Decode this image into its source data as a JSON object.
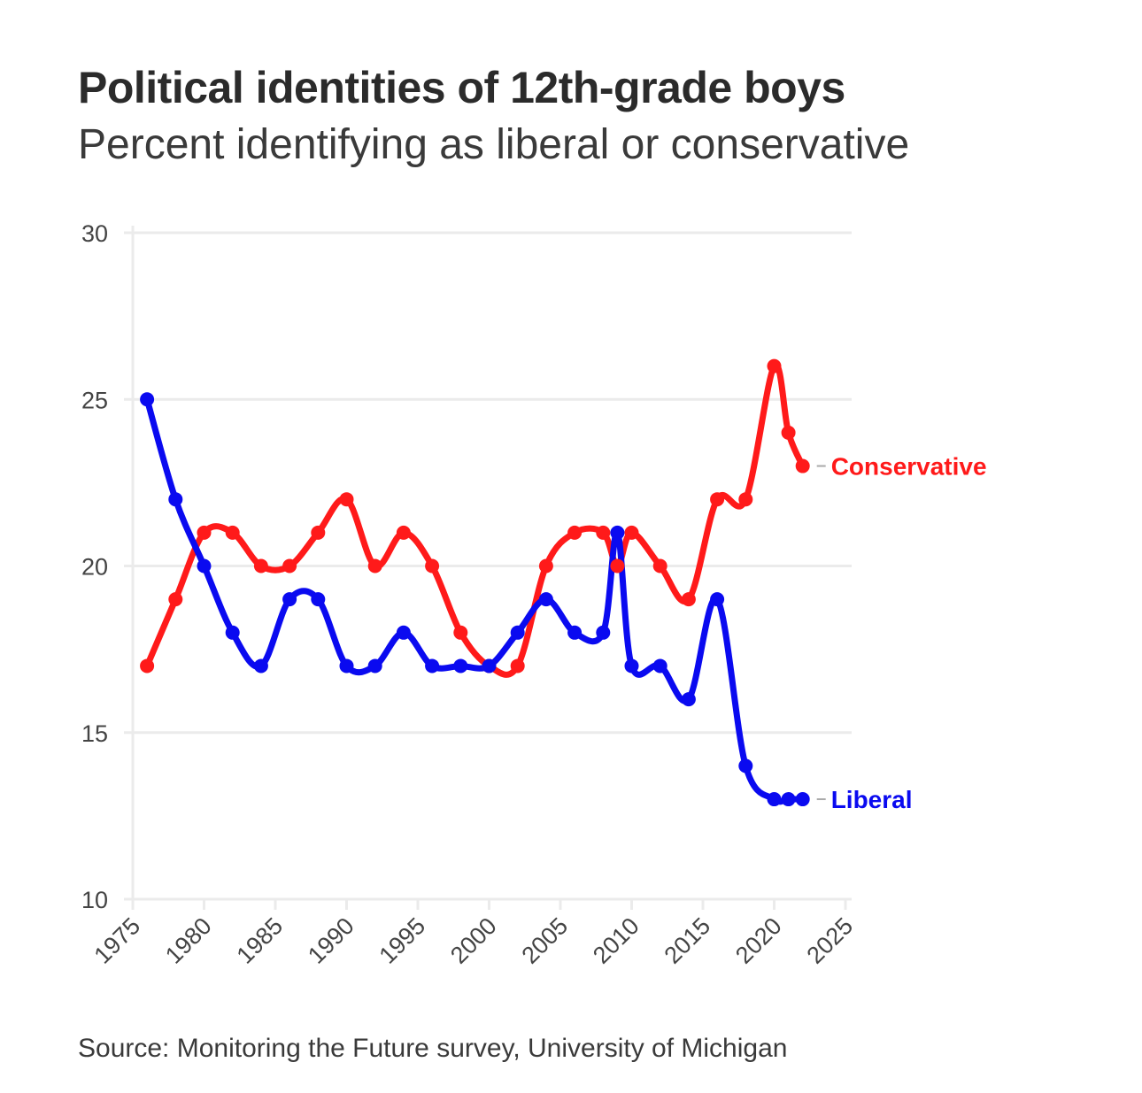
{
  "title": "Political identities of 12th-grade boys",
  "subtitle": "Percent identifying as liberal or conservative",
  "source": "Source: Monitoring the Future survey, University of Michigan",
  "chart_data": {
    "type": "line",
    "title": "Political identities of 12th-grade boys",
    "subtitle": "Percent identifying as liberal or conservative",
    "xlabel": "",
    "ylabel": "",
    "xlim": [
      1975,
      2025
    ],
    "ylim": [
      10,
      30
    ],
    "xticks": [
      1975,
      1980,
      1985,
      1990,
      1995,
      2000,
      2005,
      2010,
      2015,
      2020,
      2025
    ],
    "yticks": [
      10,
      15,
      20,
      25,
      30
    ],
    "grid": true,
    "legend": "direct labels at line ends (right)",
    "series": [
      {
        "name": "Conservative",
        "color": "#ff1a1a",
        "x": [
          1976,
          1978,
          1980,
          1982,
          1984,
          1986,
          1988,
          1990,
          1992,
          1994,
          1996,
          1998,
          2000,
          2002,
          2004,
          2006,
          2008,
          2009,
          2010,
          2012,
          2014,
          2016,
          2018,
          2020,
          2021,
          2022
        ],
        "y": [
          17,
          19,
          21,
          21,
          20,
          20,
          21,
          22,
          20,
          21,
          20,
          18,
          17,
          17,
          20,
          21,
          21,
          20,
          21,
          20,
          19,
          22,
          22,
          26,
          24,
          23
        ]
      },
      {
        "name": "Liberal",
        "color": "#0a0af0",
        "x": [
          1976,
          1978,
          1980,
          1982,
          1984,
          1986,
          1988,
          1990,
          1992,
          1994,
          1996,
          1998,
          2000,
          2002,
          2004,
          2006,
          2008,
          2009,
          2010,
          2012,
          2014,
          2016,
          2018,
          2020,
          2021,
          2022
        ],
        "y": [
          25,
          22,
          20,
          18,
          17,
          19,
          19,
          17,
          17,
          18,
          17,
          17,
          17,
          18,
          19,
          18,
          18,
          21,
          17,
          17,
          16,
          19,
          14,
          13,
          13,
          13
        ]
      }
    ]
  }
}
